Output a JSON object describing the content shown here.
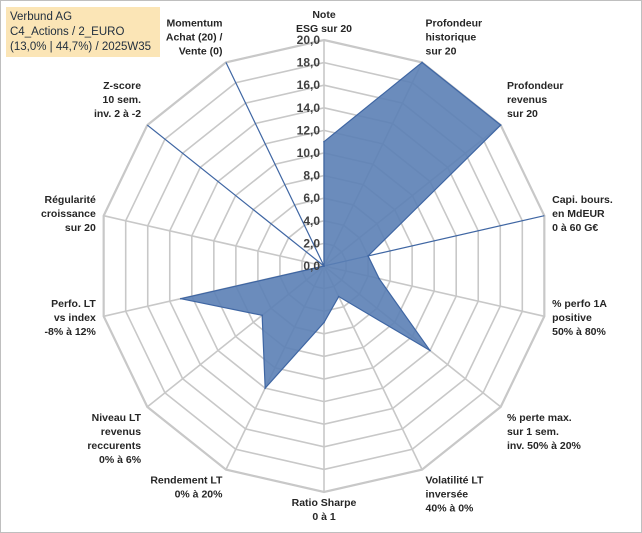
{
  "header": {
    "line1": "Verbund AG",
    "line2": "C4_Actions / 2_EURO",
    "line3": "(13,0% | 44,7%) / 2025W35"
  },
  "chart_data": {
    "type": "radar",
    "rmin": 0,
    "rmax": 20,
    "ticks": [
      "0,0",
      "2,0",
      "4,0",
      "6,0",
      "8,0",
      "10,0",
      "12,0",
      "14,0",
      "16,0",
      "18,0",
      "20,0"
    ],
    "axes": [
      [
        "Note",
        "ESG sur 20"
      ],
      [
        "Profondeur",
        "historique",
        "sur 20"
      ],
      [
        "Profondeur",
        "revenus",
        "sur 20"
      ],
      [
        "Capi. bours.",
        "en MdEUR",
        "0 à 60 G€"
      ],
      [
        "% perfo 1A",
        "positive",
        "50% à 80%"
      ],
      [
        "% perte max.",
        "sur 1 sem.",
        "inv. 50% à 20%"
      ],
      [
        "Volatilité LT",
        "inversée",
        "40% à 0%"
      ],
      [
        "Ratio Sharpe",
        "0 à 1"
      ],
      [
        "Rendement LT",
        "0% à 20%"
      ],
      [
        "Niveau LT",
        "revenus",
        "reccurents",
        "0% à 6%"
      ],
      [
        "Perfo. LT",
        "vs index",
        "-8% à 12%"
      ],
      [
        "Régularité",
        "croissance",
        "sur 20"
      ],
      [
        "Z-score",
        "10 sem.",
        "inv. 2 à -2"
      ],
      [
        "Momentum",
        "Achat (20) /",
        "Vente (0)"
      ]
    ],
    "values": [
      11,
      20,
      20,
      4,
      5,
      12,
      3,
      5,
      12,
      7,
      13,
      0,
      0,
      0
    ],
    "colors": {
      "fill": "#5b7fb5",
      "line": "#3f66a3",
      "grid": "#c8c8c8",
      "spoke_highlight": "#3f66a3"
    },
    "highlighted_spokes": [
      3,
      12,
      13
    ]
  }
}
